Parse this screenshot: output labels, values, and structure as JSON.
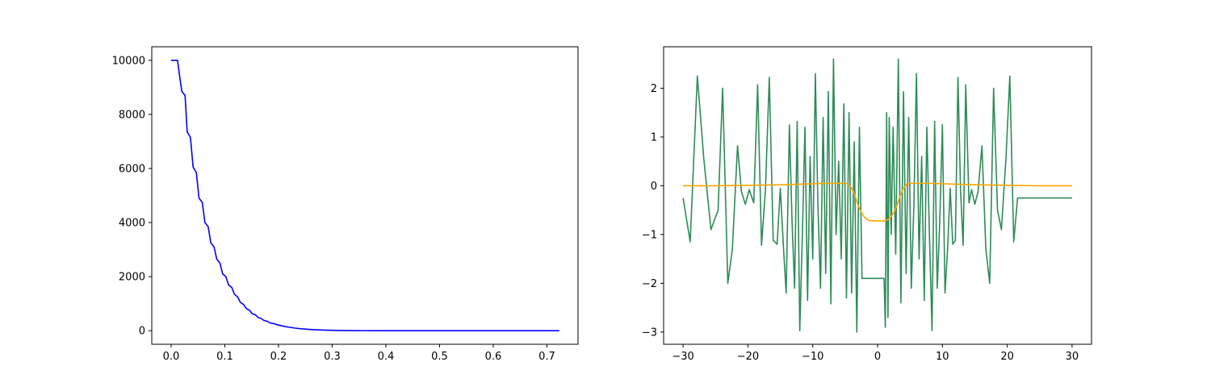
{
  "chart_data": [
    {
      "type": "line",
      "title": "",
      "xlabel": "",
      "ylabel": "",
      "xlim": [
        -0.036,
        0.758
      ],
      "ylim": [
        -500,
        10500
      ],
      "xticks": [
        0.0,
        0.1,
        0.2,
        0.3,
        0.4,
        0.5,
        0.6,
        0.7
      ],
      "xtick_labels": [
        "0.0",
        "0.1",
        "0.2",
        "0.3",
        "0.4",
        "0.5",
        "0.6",
        "0.7"
      ],
      "yticks": [
        0,
        2000,
        4000,
        6000,
        8000,
        10000
      ],
      "ytick_labels": [
        "0",
        "2000",
        "4000",
        "6000",
        "8000",
        "10000"
      ],
      "grid": false,
      "series": [
        {
          "color": "#0000ff",
          "x": [
            0.0,
            0.012,
            0.016,
            0.02,
            0.026,
            0.03,
            0.036,
            0.041,
            0.047,
            0.052,
            0.058,
            0.063,
            0.069,
            0.074,
            0.08,
            0.085,
            0.091,
            0.096,
            0.102,
            0.107,
            0.113,
            0.118,
            0.124,
            0.129,
            0.135,
            0.14,
            0.146,
            0.151,
            0.157,
            0.162,
            0.168,
            0.173,
            0.179,
            0.184,
            0.19,
            0.2,
            0.21,
            0.22,
            0.23,
            0.24,
            0.25,
            0.26,
            0.27,
            0.28,
            0.29,
            0.3,
            0.32,
            0.34,
            0.36,
            0.38,
            0.4,
            0.45,
            0.5,
            0.55,
            0.6,
            0.65,
            0.7,
            0.723
          ],
          "y": [
            10000,
            10000,
            9400,
            8850,
            8700,
            7350,
            7150,
            6050,
            5850,
            4900,
            4750,
            4000,
            3850,
            3250,
            3100,
            2650,
            2500,
            2100,
            2000,
            1700,
            1600,
            1350,
            1250,
            1050,
            970,
            820,
            760,
            630,
            590,
            490,
            450,
            380,
            350,
            290,
            270,
            210,
            165,
            130,
            100,
            78,
            60,
            46,
            35,
            27,
            20,
            15,
            9,
            5,
            3,
            2,
            1,
            0,
            0,
            0,
            0,
            0,
            0,
            0
          ]
        }
      ]
    },
    {
      "type": "line",
      "title": "",
      "xlabel": "",
      "ylabel": "",
      "xlim": [
        -33,
        33
      ],
      "ylim": [
        -3.25,
        2.85
      ],
      "xticks": [
        -30,
        -20,
        -10,
        0,
        10,
        20,
        30
      ],
      "xtick_labels": [
        "−30",
        "−20",
        "−10",
        "0",
        "10",
        "20",
        "30"
      ],
      "yticks": [
        -3,
        -2,
        -1,
        0,
        1,
        2
      ],
      "ytick_labels": [
        "−3",
        "−2",
        "−1",
        "0",
        "1",
        "2"
      ],
      "grid": false,
      "series": [
        {
          "color": "#2e8b57",
          "x": [
            -30,
            -28.9,
            -27.8,
            -26.8,
            -25.7,
            -24.6,
            -23.9,
            -23.1,
            -22.4,
            -21.6,
            -21,
            -20.4,
            -19.8,
            -19.1,
            -18.5,
            -17.9,
            -17.3,
            -16.7,
            -16.1,
            -15.5,
            -15,
            -14.5,
            -14.1,
            -13.6,
            -13.2,
            -12.8,
            -12.4,
            -12.0,
            -11.6,
            -11.2,
            -10.8,
            -10.4,
            -10.0,
            -9.6,
            -9.2,
            -8.8,
            -8.4,
            -8.0,
            -7.6,
            -7.2,
            -6.8,
            -6.4,
            -6.0,
            -5.6,
            -5.2,
            -4.8,
            -4.4,
            -4.0,
            -3.6,
            -3.2,
            -2.8,
            -2.4,
            -2.1,
            -1.8,
            -1.6,
            -1.4,
            -1.2,
            -1.0,
            -0.8,
            -0.6,
            -0.4,
            -0.2,
            0.0,
            0.2,
            0.4,
            0.6,
            0.8,
            1.0,
            1.2,
            1.4,
            1.6,
            1.8,
            2.1,
            2.4,
            2.8,
            3.2,
            3.6,
            4.0,
            4.4,
            4.8,
            5.2,
            5.6,
            6.0,
            6.4,
            6.8,
            7.2,
            7.6,
            8.0,
            8.4,
            8.8,
            9.2,
            9.6,
            10.0,
            10.4,
            10.8,
            11.2,
            11.6,
            12.0,
            12.4,
            12.8,
            13.2,
            13.6,
            14.1,
            14.5,
            15,
            15.5,
            16.1,
            16.7,
            17.3,
            17.9,
            18.5,
            19.1,
            19.8,
            20.4,
            21,
            21.6,
            22.4,
            23.1,
            23.9,
            24.6,
            25.7,
            26.8,
            27.8,
            28.9,
            30
          ],
          "y": [
            -0.25,
            -1.15,
            2.25,
            0.55,
            -0.9,
            -0.5,
            2.0,
            -2.0,
            -1.3,
            0.82,
            -0.12,
            -0.38,
            -0.08,
            -0.35,
            2.07,
            -1.22,
            -0.1,
            2.22,
            -1.12,
            -1.2,
            -0.05,
            -1.3,
            -2.2,
            1.25,
            -0.7,
            -2.1,
            1.32,
            -2.97,
            -1.0,
            1.2,
            -2.35,
            0.6,
            -1.5,
            2.3,
            -0.4,
            -2.1,
            1.4,
            -1.8,
            1.93,
            -2.42,
            2.6,
            -1.0,
            0.5,
            -1.5,
            1.68,
            -2.3,
            1.5,
            -2.2,
            0.9,
            -3.0,
            1.2,
            -1.9,
            -1.9,
            -1.9,
            -1.9,
            -1.9,
            -1.9,
            -1.9,
            -1.9,
            -1.9,
            -1.9,
            -1.9,
            -1.9,
            -1.9,
            -1.9,
            -1.9,
            -1.9,
            -1.9,
            -2.9,
            1.5,
            -2.7,
            1.4,
            -1.0,
            1.2,
            -1.4,
            2.6,
            -2.4,
            1.93,
            -1.8,
            1.4,
            -2.1,
            -0.4,
            2.3,
            -1.5,
            0.6,
            -2.35,
            1.2,
            -1.0,
            -2.97,
            1.32,
            -2.1,
            -0.7,
            1.25,
            -2.2,
            -1.3,
            -0.05,
            -1.2,
            -1.12,
            2.22,
            -0.1,
            -1.22,
            2.07,
            -0.35,
            -0.08,
            -0.38,
            -0.12,
            0.82,
            -1.3,
            -2.0,
            2.0,
            -0.5,
            -0.9,
            0.55,
            2.25,
            -1.15,
            -0.25,
            -0.25,
            -0.25,
            -0.25,
            -0.25,
            -0.25,
            -0.25,
            -0.25,
            -0.25,
            -0.25
          ]
        },
        {
          "color": "#ffa500",
          "x": [
            -30,
            -25,
            -20,
            -15,
            -10,
            -8,
            -6,
            -5,
            -4.5,
            -4,
            -3.5,
            -3,
            -2.5,
            -2,
            -1.5,
            -1,
            0,
            1,
            1.5,
            2,
            2.5,
            3,
            3.5,
            4,
            4.5,
            5,
            6,
            8,
            10,
            15,
            20,
            25,
            30
          ],
          "y": [
            0.0,
            0.0,
            0.01,
            0.02,
            0.04,
            0.05,
            0.05,
            0.05,
            0.03,
            -0.05,
            -0.2,
            -0.4,
            -0.55,
            -0.65,
            -0.7,
            -0.72,
            -0.72,
            -0.72,
            -0.7,
            -0.65,
            -0.55,
            -0.4,
            -0.2,
            -0.05,
            0.03,
            0.05,
            0.05,
            0.05,
            0.04,
            0.02,
            0.01,
            0.0,
            0.0
          ]
        }
      ]
    }
  ]
}
